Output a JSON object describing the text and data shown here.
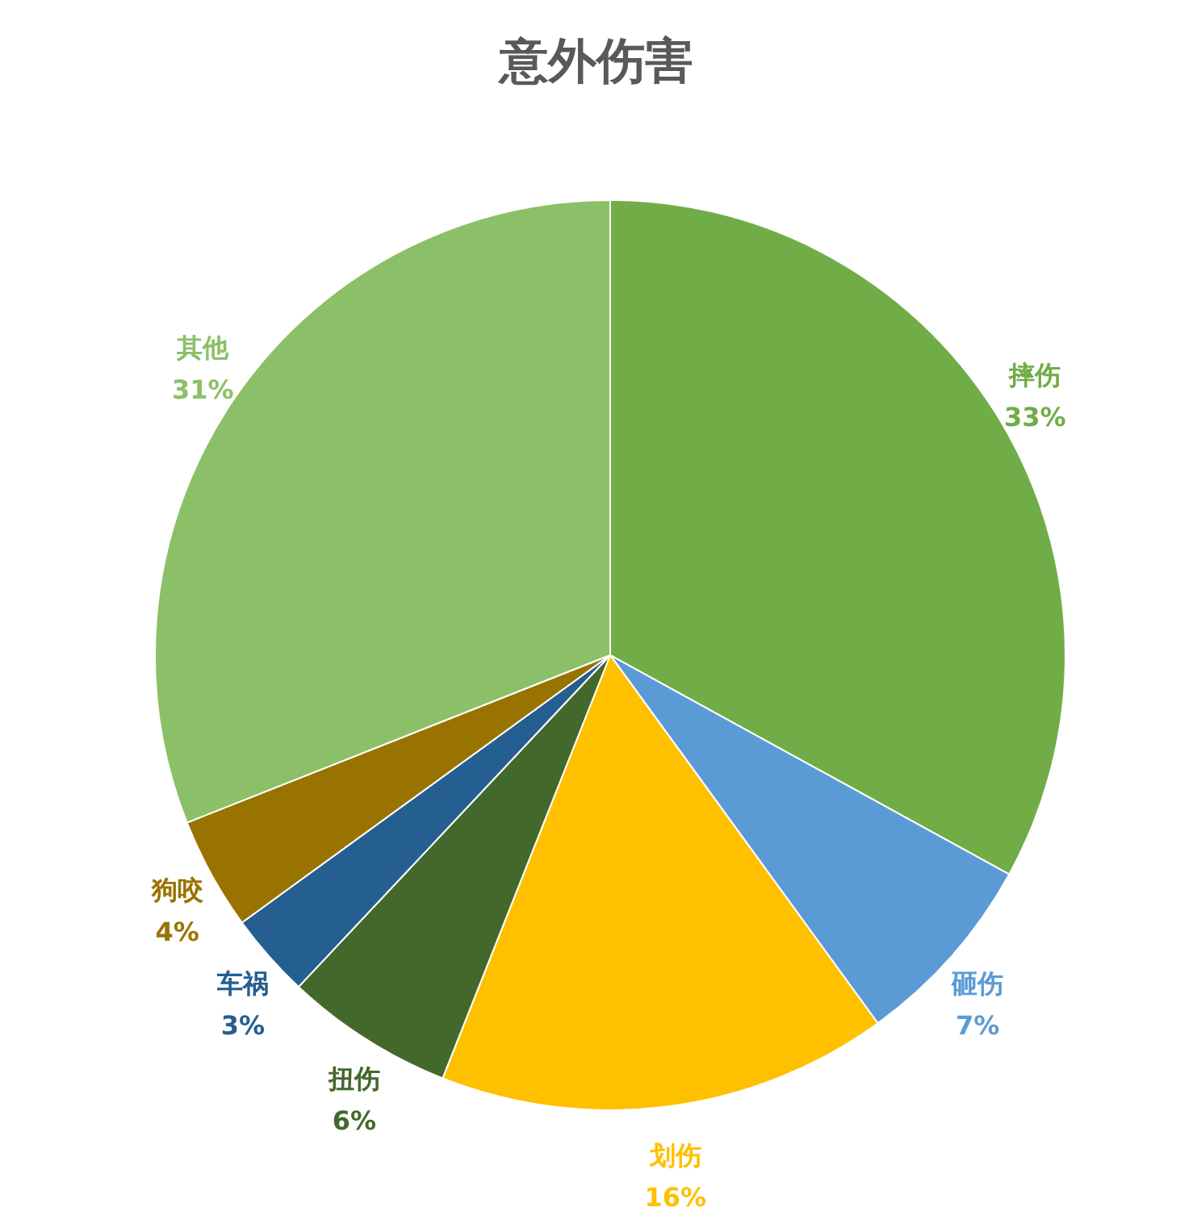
{
  "chart_data": {
    "type": "pie",
    "title": "意外伤害",
    "categories": [
      "摔伤",
      "砸伤",
      "划伤",
      "扭伤",
      "车祸",
      "狗咬",
      "其他"
    ],
    "values": [
      33,
      7,
      16,
      6,
      3,
      4,
      31
    ],
    "value_labels": [
      "33%",
      "7%",
      "16%",
      "6%",
      "3%",
      "4%",
      "31%"
    ],
    "colors": [
      "#70ad47",
      "#5b9bd5",
      "#ffc000",
      "#43682b",
      "#255e91",
      "#997300",
      "#8cc068"
    ]
  }
}
